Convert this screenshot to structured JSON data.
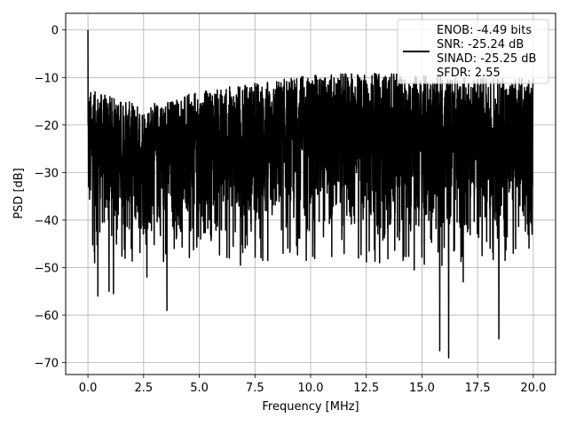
{
  "chart_data": {
    "type": "line",
    "title": "",
    "xlabel": "Frequency [MHz]",
    "ylabel": "PSD [dB]",
    "xlim": [
      -1.0,
      21.0
    ],
    "ylim": [
      -72.5,
      3.5
    ],
    "xticks": [
      0.0,
      2.5,
      5.0,
      7.5,
      10.0,
      12.5,
      15.0,
      17.5,
      20.0
    ],
    "xtick_labels": [
      "0.0",
      "2.5",
      "5.0",
      "7.5",
      "10.0",
      "12.5",
      "15.0",
      "17.5",
      "20.0"
    ],
    "yticks": [
      0,
      -10,
      -20,
      -30,
      -40,
      -50,
      -60,
      -70
    ],
    "ytick_labels": [
      "0",
      "−10",
      "−20",
      "−30",
      "−40",
      "−50",
      "−60",
      "−70"
    ],
    "grid": true,
    "legend_position": "top-right",
    "legend_entries": [
      "ENOB: -4.49 bits",
      "SNR: -25.24 dB",
      "SINAD: -25.25 dB",
      "SFDR: 2.55"
    ],
    "series": [
      {
        "color": "#000000",
        "x_range": [
          0.0,
          20.0
        ],
        "peak": {
          "x": 0.0,
          "y": 0.0
        },
        "envelope": [
          {
            "x": 0.0,
            "upper": -12.5,
            "lower": -44.0
          },
          {
            "x": 2.5,
            "upper": -16.0,
            "lower": -45.0
          },
          {
            "x": 5.0,
            "upper": -13.0,
            "lower": -45.0
          },
          {
            "x": 7.5,
            "upper": -11.0,
            "lower": -45.0
          },
          {
            "x": 10.0,
            "upper": -9.5,
            "lower": -45.0
          },
          {
            "x": 12.5,
            "upper": -9.0,
            "lower": -45.0
          },
          {
            "x": 15.0,
            "upper": -9.5,
            "lower": -46.0
          },
          {
            "x": 17.5,
            "upper": -10.0,
            "lower": -45.0
          },
          {
            "x": 20.0,
            "upper": -10.0,
            "lower": -45.0
          }
        ],
        "spikes": [
          {
            "x": 0.3,
            "y": -49.0
          },
          {
            "x": 0.45,
            "y": -56.0
          },
          {
            "x": 0.95,
            "y": -55.0
          },
          {
            "x": 1.15,
            "y": -55.5
          },
          {
            "x": 2.65,
            "y": -52.0
          },
          {
            "x": 3.55,
            "y": -59.0
          },
          {
            "x": 6.35,
            "y": -48.0
          },
          {
            "x": 6.85,
            "y": -49.5
          },
          {
            "x": 7.85,
            "y": -48.5
          },
          {
            "x": 9.8,
            "y": -48.5
          },
          {
            "x": 12.15,
            "y": -48.0
          },
          {
            "x": 15.8,
            "y": -67.5
          },
          {
            "x": 16.2,
            "y": -69.0
          },
          {
            "x": 16.85,
            "y": -53.0
          },
          {
            "x": 18.45,
            "y": -65.0
          },
          {
            "x": 19.1,
            "y": -47.0
          },
          {
            "x": 14.65,
            "y": -50.5
          },
          {
            "x": 13.1,
            "y": -49.0
          }
        ]
      }
    ]
  }
}
